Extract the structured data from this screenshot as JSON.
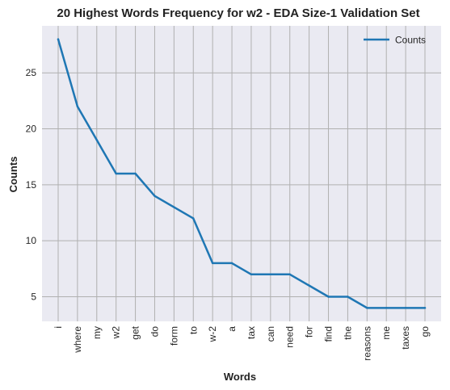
{
  "chart_data": {
    "type": "line",
    "title": "20 Highest Words Frequency for w2 - EDA Size-1 Validation Set",
    "xlabel": "Words",
    "ylabel": "Counts",
    "categories": [
      "i",
      "where",
      "my",
      "w2",
      "get",
      "do",
      "form",
      "to",
      "w-2",
      "a",
      "tax",
      "can",
      "need",
      "for",
      "find",
      "the",
      "reasons",
      "me",
      "taxes",
      "go"
    ],
    "series": [
      {
        "name": "Counts",
        "values": [
          28,
          22,
          19,
          16,
          16,
          14,
          13,
          12,
          8,
          8,
          7,
          7,
          7,
          6,
          5,
          5,
          4,
          4,
          4,
          4
        ],
        "color": "#1f77b4"
      }
    ],
    "yticks": [
      5,
      10,
      15,
      20,
      25
    ],
    "ylim": [
      2.8,
      29.2
    ],
    "grid": true,
    "legend": "top-right",
    "background": "#eaeaf2",
    "gridcolor": "#b0b0b0"
  }
}
